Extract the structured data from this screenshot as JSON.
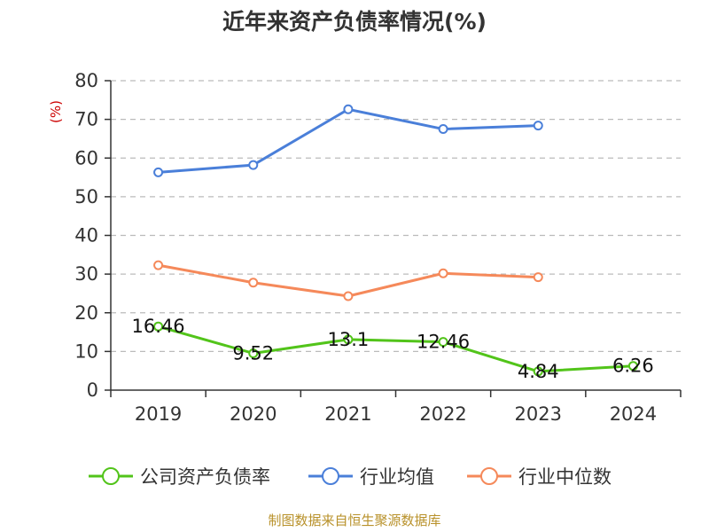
{
  "chart_data": {
    "type": "line",
    "title": "近年来资产负债率情况(%)",
    "y_unit_label": "(%)",
    "categories": [
      "2019",
      "2020",
      "2021",
      "2022",
      "2023",
      "2024"
    ],
    "ylim": [
      0,
      80
    ],
    "yticks": [
      0,
      10,
      20,
      30,
      40,
      50,
      60,
      70,
      80
    ],
    "grid": true,
    "legend_position": "bottom",
    "series": [
      {
        "name": "公司资产负债率",
        "color": "#52c41a",
        "values": [
          16.46,
          9.52,
          13.1,
          12.46,
          4.84,
          6.26
        ],
        "labels": [
          "16.46",
          "9.52",
          "13.1",
          "12.46",
          "4.84",
          "6.26"
        ]
      },
      {
        "name": "行业均值",
        "color": "#4a7fd9",
        "values": [
          56.3,
          58.2,
          72.6,
          67.5,
          68.4,
          null
        ]
      },
      {
        "name": "行业中位数",
        "color": "#f5895a",
        "values": [
          32.3,
          27.8,
          24.3,
          30.2,
          29.2,
          null
        ]
      }
    ],
    "source": "制图数据来自恒生聚源数据库"
  }
}
